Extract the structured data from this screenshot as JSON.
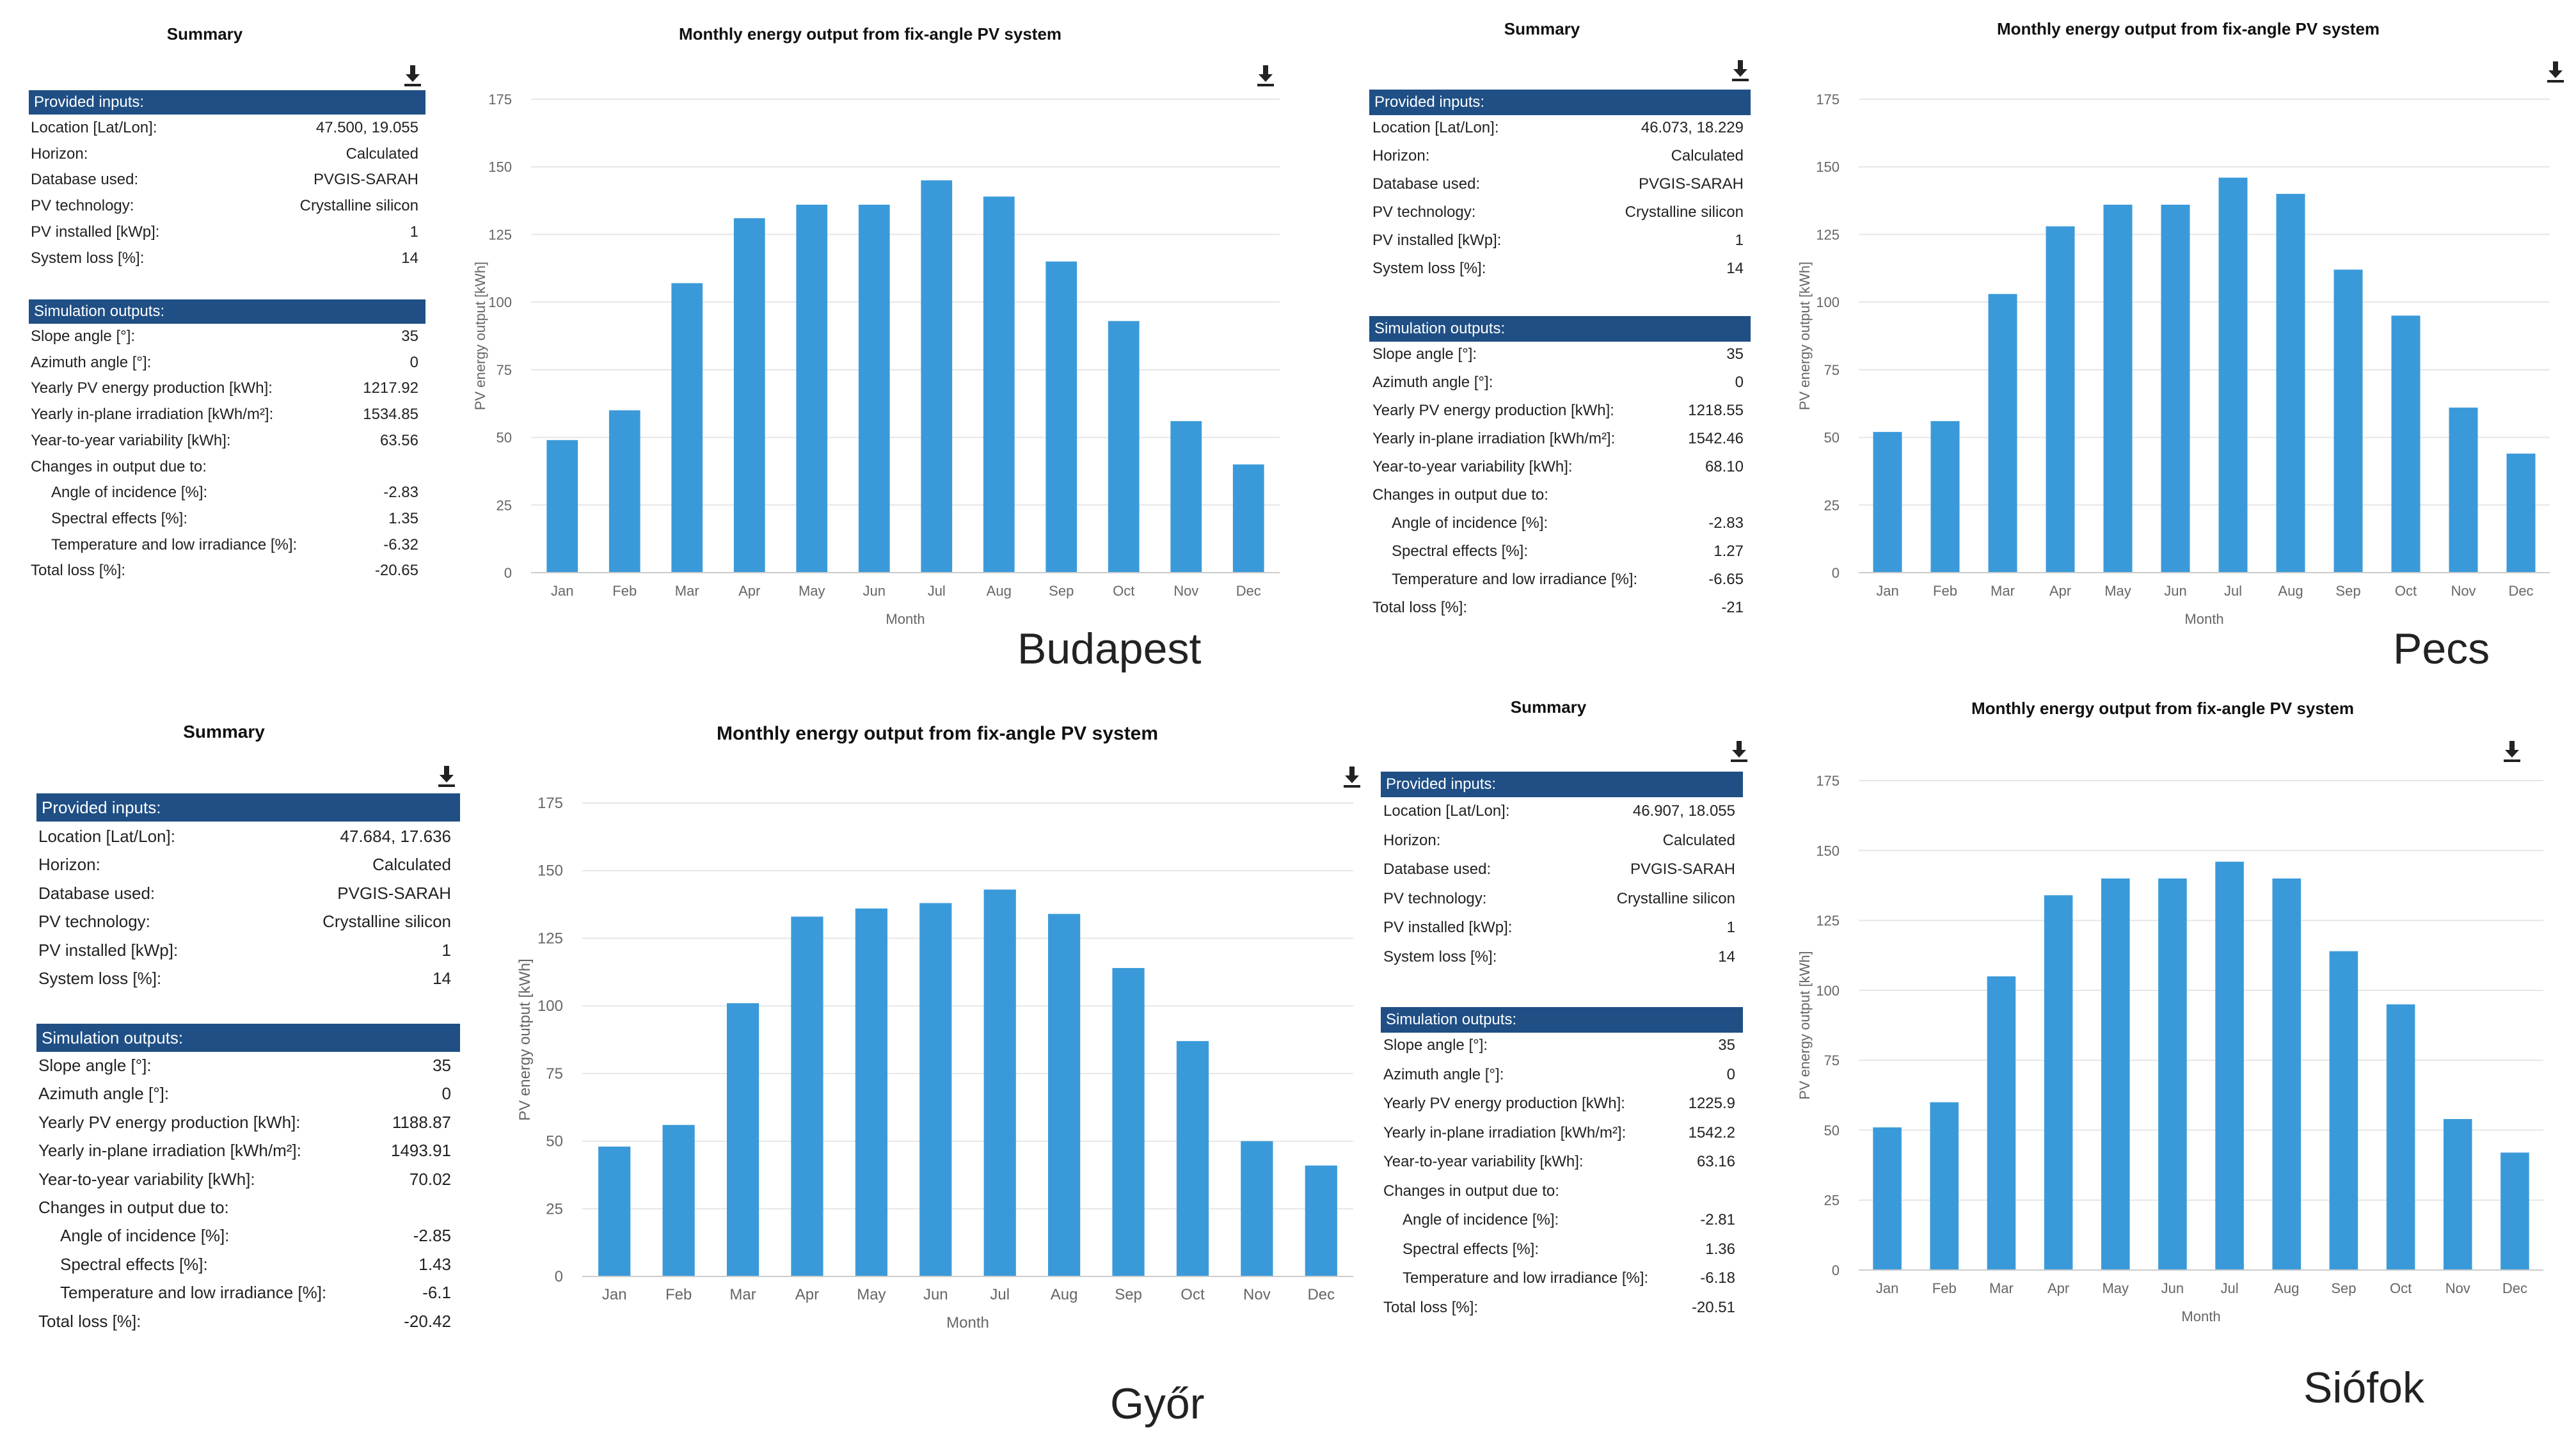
{
  "colors": {
    "header_bg": "#1f4f85",
    "bar": "#3a9ad9",
    "grid": "#e6e6e6",
    "axis_text": "#666666"
  },
  "icons": {
    "download": "download-icon"
  },
  "panels": [
    {
      "city": "Budapest",
      "summary_title": "Summary",
      "provided_header": "Provided inputs:",
      "provided": [
        {
          "label": "Location [Lat/Lon]:",
          "value": "47.500, 19.055"
        },
        {
          "label": "Horizon:",
          "value": "Calculated"
        },
        {
          "label": "Database used:",
          "value": "PVGIS-SARAH"
        },
        {
          "label": "PV technology:",
          "value": "Crystalline silicon"
        },
        {
          "label": "PV installed [kWp]:",
          "value": "1"
        },
        {
          "label": "System loss [%]:",
          "value": "14"
        }
      ],
      "sim_header": "Simulation outputs:",
      "outputs": [
        {
          "label": "Slope angle [°]:",
          "value": "35",
          "indent": false
        },
        {
          "label": "Azimuth angle [°]:",
          "value": "0",
          "indent": false
        },
        {
          "label": "Yearly PV energy production [kWh]:",
          "value": "1217.92",
          "indent": false
        },
        {
          "label": "Yearly in-plane irradiation [kWh/m²]:",
          "value": "1534.85",
          "indent": false
        },
        {
          "label": "Year-to-year variability [kWh]:",
          "value": "63.56",
          "indent": false
        },
        {
          "label": "Changes in output due to:",
          "value": "",
          "indent": false
        },
        {
          "label": "Angle of incidence [%]:",
          "value": "-2.83",
          "indent": true
        },
        {
          "label": "Spectral effects [%]:",
          "value": "1.35",
          "indent": true
        },
        {
          "label": "Temperature and low irradiance [%]:",
          "value": "-6.32",
          "indent": true
        },
        {
          "label": "Total loss [%]:",
          "value": "-20.65",
          "indent": false
        }
      ]
    },
    {
      "city": "Pecs",
      "summary_title": "Summary",
      "provided_header": "Provided inputs:",
      "provided": [
        {
          "label": "Location [Lat/Lon]:",
          "value": "46.073, 18.229"
        },
        {
          "label": "Horizon:",
          "value": "Calculated"
        },
        {
          "label": "Database used:",
          "value": "PVGIS-SARAH"
        },
        {
          "label": "PV technology:",
          "value": "Crystalline silicon"
        },
        {
          "label": "PV installed [kWp]:",
          "value": "1"
        },
        {
          "label": "System loss [%]:",
          "value": "14"
        }
      ],
      "sim_header": "Simulation outputs:",
      "outputs": [
        {
          "label": "Slope angle [°]:",
          "value": "35",
          "indent": false
        },
        {
          "label": "Azimuth angle [°]:",
          "value": "0",
          "indent": false
        },
        {
          "label": "Yearly PV energy production [kWh]:",
          "value": "1218.55",
          "indent": false
        },
        {
          "label": "Yearly in-plane irradiation [kWh/m²]:",
          "value": "1542.46",
          "indent": false
        },
        {
          "label": "Year-to-year variability [kWh]:",
          "value": "68.10",
          "indent": false
        },
        {
          "label": "Changes in output due to:",
          "value": "",
          "indent": false
        },
        {
          "label": "Angle of incidence [%]:",
          "value": "-2.83",
          "indent": true
        },
        {
          "label": "Spectral effects [%]:",
          "value": "1.27",
          "indent": true
        },
        {
          "label": "Temperature and low irradiance [%]:",
          "value": "-6.65",
          "indent": true
        },
        {
          "label": "Total loss [%]:",
          "value": "-21",
          "indent": false
        }
      ]
    },
    {
      "city": "Győr",
      "summary_title": "Summary",
      "provided_header": "Provided inputs:",
      "provided": [
        {
          "label": "Location [Lat/Lon]:",
          "value": "47.684, 17.636"
        },
        {
          "label": "Horizon:",
          "value": "Calculated"
        },
        {
          "label": "Database used:",
          "value": "PVGIS-SARAH"
        },
        {
          "label": "PV technology:",
          "value": "Crystalline silicon"
        },
        {
          "label": "PV installed [kWp]:",
          "value": "1"
        },
        {
          "label": "System loss [%]:",
          "value": "14"
        }
      ],
      "sim_header": "Simulation outputs:",
      "outputs": [
        {
          "label": "Slope angle [°]:",
          "value": "35",
          "indent": false
        },
        {
          "label": "Azimuth angle [°]:",
          "value": "0",
          "indent": false
        },
        {
          "label": "Yearly PV energy production [kWh]:",
          "value": "1188.87",
          "indent": false
        },
        {
          "label": "Yearly in-plane irradiation [kWh/m²]:",
          "value": "1493.91",
          "indent": false
        },
        {
          "label": "Year-to-year variability [kWh]:",
          "value": "70.02",
          "indent": false
        },
        {
          "label": "Changes in output due to:",
          "value": "",
          "indent": false
        },
        {
          "label": "Angle of incidence [%]:",
          "value": "-2.85",
          "indent": true
        },
        {
          "label": "Spectral effects [%]:",
          "value": "1.43",
          "indent": true
        },
        {
          "label": "Temperature and low irradiance [%]:",
          "value": "-6.1",
          "indent": true
        },
        {
          "label": "Total loss [%]:",
          "value": "-20.42",
          "indent": false
        }
      ]
    },
    {
      "city": "Siófok",
      "summary_title": "Summary",
      "provided_header": "Provided inputs:",
      "provided": [
        {
          "label": "Location [Lat/Lon]:",
          "value": "46.907, 18.055"
        },
        {
          "label": "Horizon:",
          "value": "Calculated"
        },
        {
          "label": "Database used:",
          "value": "PVGIS-SARAH"
        },
        {
          "label": "PV technology:",
          "value": "Crystalline silicon"
        },
        {
          "label": "PV installed [kWp]:",
          "value": "1"
        },
        {
          "label": "System loss [%]:",
          "value": "14"
        }
      ],
      "sim_header": "Simulation outputs:",
      "outputs": [
        {
          "label": "Slope angle [°]:",
          "value": "35",
          "indent": false
        },
        {
          "label": "Azimuth angle [°]:",
          "value": "0",
          "indent": false
        },
        {
          "label": "Yearly PV energy production [kWh]:",
          "value": "1225.9",
          "indent": false
        },
        {
          "label": "Yearly in-plane irradiation [kWh/m²]:",
          "value": "1542.2",
          "indent": false
        },
        {
          "label": "Year-to-year variability [kWh]:",
          "value": "63.16",
          "indent": false
        },
        {
          "label": "Changes in output due to:",
          "value": "",
          "indent": false
        },
        {
          "label": "Angle of incidence [%]:",
          "value": "-2.81",
          "indent": true
        },
        {
          "label": "Spectral effects [%]:",
          "value": "1.36",
          "indent": true
        },
        {
          "label": "Temperature and low irradiance [%]:",
          "value": "-6.18",
          "indent": true
        },
        {
          "label": "Total loss [%]:",
          "value": "-20.51",
          "indent": false
        }
      ]
    }
  ],
  "chart_data": [
    {
      "type": "bar",
      "title": "Monthly energy output from fix-angle PV system",
      "xlabel": "Month",
      "ylabel": "PV energy output [kWh]",
      "categories": [
        "Jan",
        "Feb",
        "Mar",
        "Apr",
        "May",
        "Jun",
        "Jul",
        "Aug",
        "Sep",
        "Oct",
        "Nov",
        "Dec"
      ],
      "values": [
        49,
        60,
        107,
        131,
        136,
        136,
        145,
        139,
        115,
        93,
        56,
        40
      ],
      "ylim": [
        0,
        175
      ],
      "yticks": [
        0,
        25,
        50,
        75,
        100,
        125,
        150,
        175
      ],
      "grid": true
    },
    {
      "type": "bar",
      "title": "Monthly energy output from fix-angle PV system",
      "xlabel": "Month",
      "ylabel": "PV energy output [kWh]",
      "categories": [
        "Jan",
        "Feb",
        "Mar",
        "Apr",
        "May",
        "Jun",
        "Jul",
        "Aug",
        "Sep",
        "Oct",
        "Nov",
        "Dec"
      ],
      "values": [
        52,
        56,
        103,
        128,
        136,
        136,
        146,
        140,
        112,
        95,
        61,
        44
      ],
      "ylim": [
        0,
        175
      ],
      "yticks": [
        0,
        25,
        50,
        75,
        100,
        125,
        150,
        175
      ],
      "grid": true
    },
    {
      "type": "bar",
      "title": "Monthly energy output from fix-angle PV system",
      "xlabel": "Month",
      "ylabel": "PV energy output [kWh]",
      "categories": [
        "Jan",
        "Feb",
        "Mar",
        "Apr",
        "May",
        "Jun",
        "Jul",
        "Aug",
        "Sep",
        "Oct",
        "Nov",
        "Dec"
      ],
      "values": [
        48,
        56,
        101,
        133,
        136,
        138,
        143,
        134,
        114,
        87,
        50,
        41
      ],
      "ylim": [
        0,
        175
      ],
      "yticks": [
        0,
        25,
        50,
        75,
        100,
        125,
        150,
        175
      ],
      "grid": true
    },
    {
      "type": "bar",
      "title": "Monthly energy output from fix-angle PV system",
      "xlabel": "Month",
      "ylabel": "PV energy output [kWh]",
      "categories": [
        "Jan",
        "Feb",
        "Mar",
        "Apr",
        "May",
        "Jun",
        "Jul",
        "Aug",
        "Sep",
        "Oct",
        "Nov",
        "Dec"
      ],
      "values": [
        51,
        60,
        105,
        134,
        140,
        140,
        146,
        140,
        114,
        95,
        54,
        42
      ],
      "ylim": [
        0,
        175
      ],
      "yticks": [
        0,
        25,
        50,
        75,
        100,
        125,
        150,
        175
      ],
      "grid": true
    }
  ]
}
